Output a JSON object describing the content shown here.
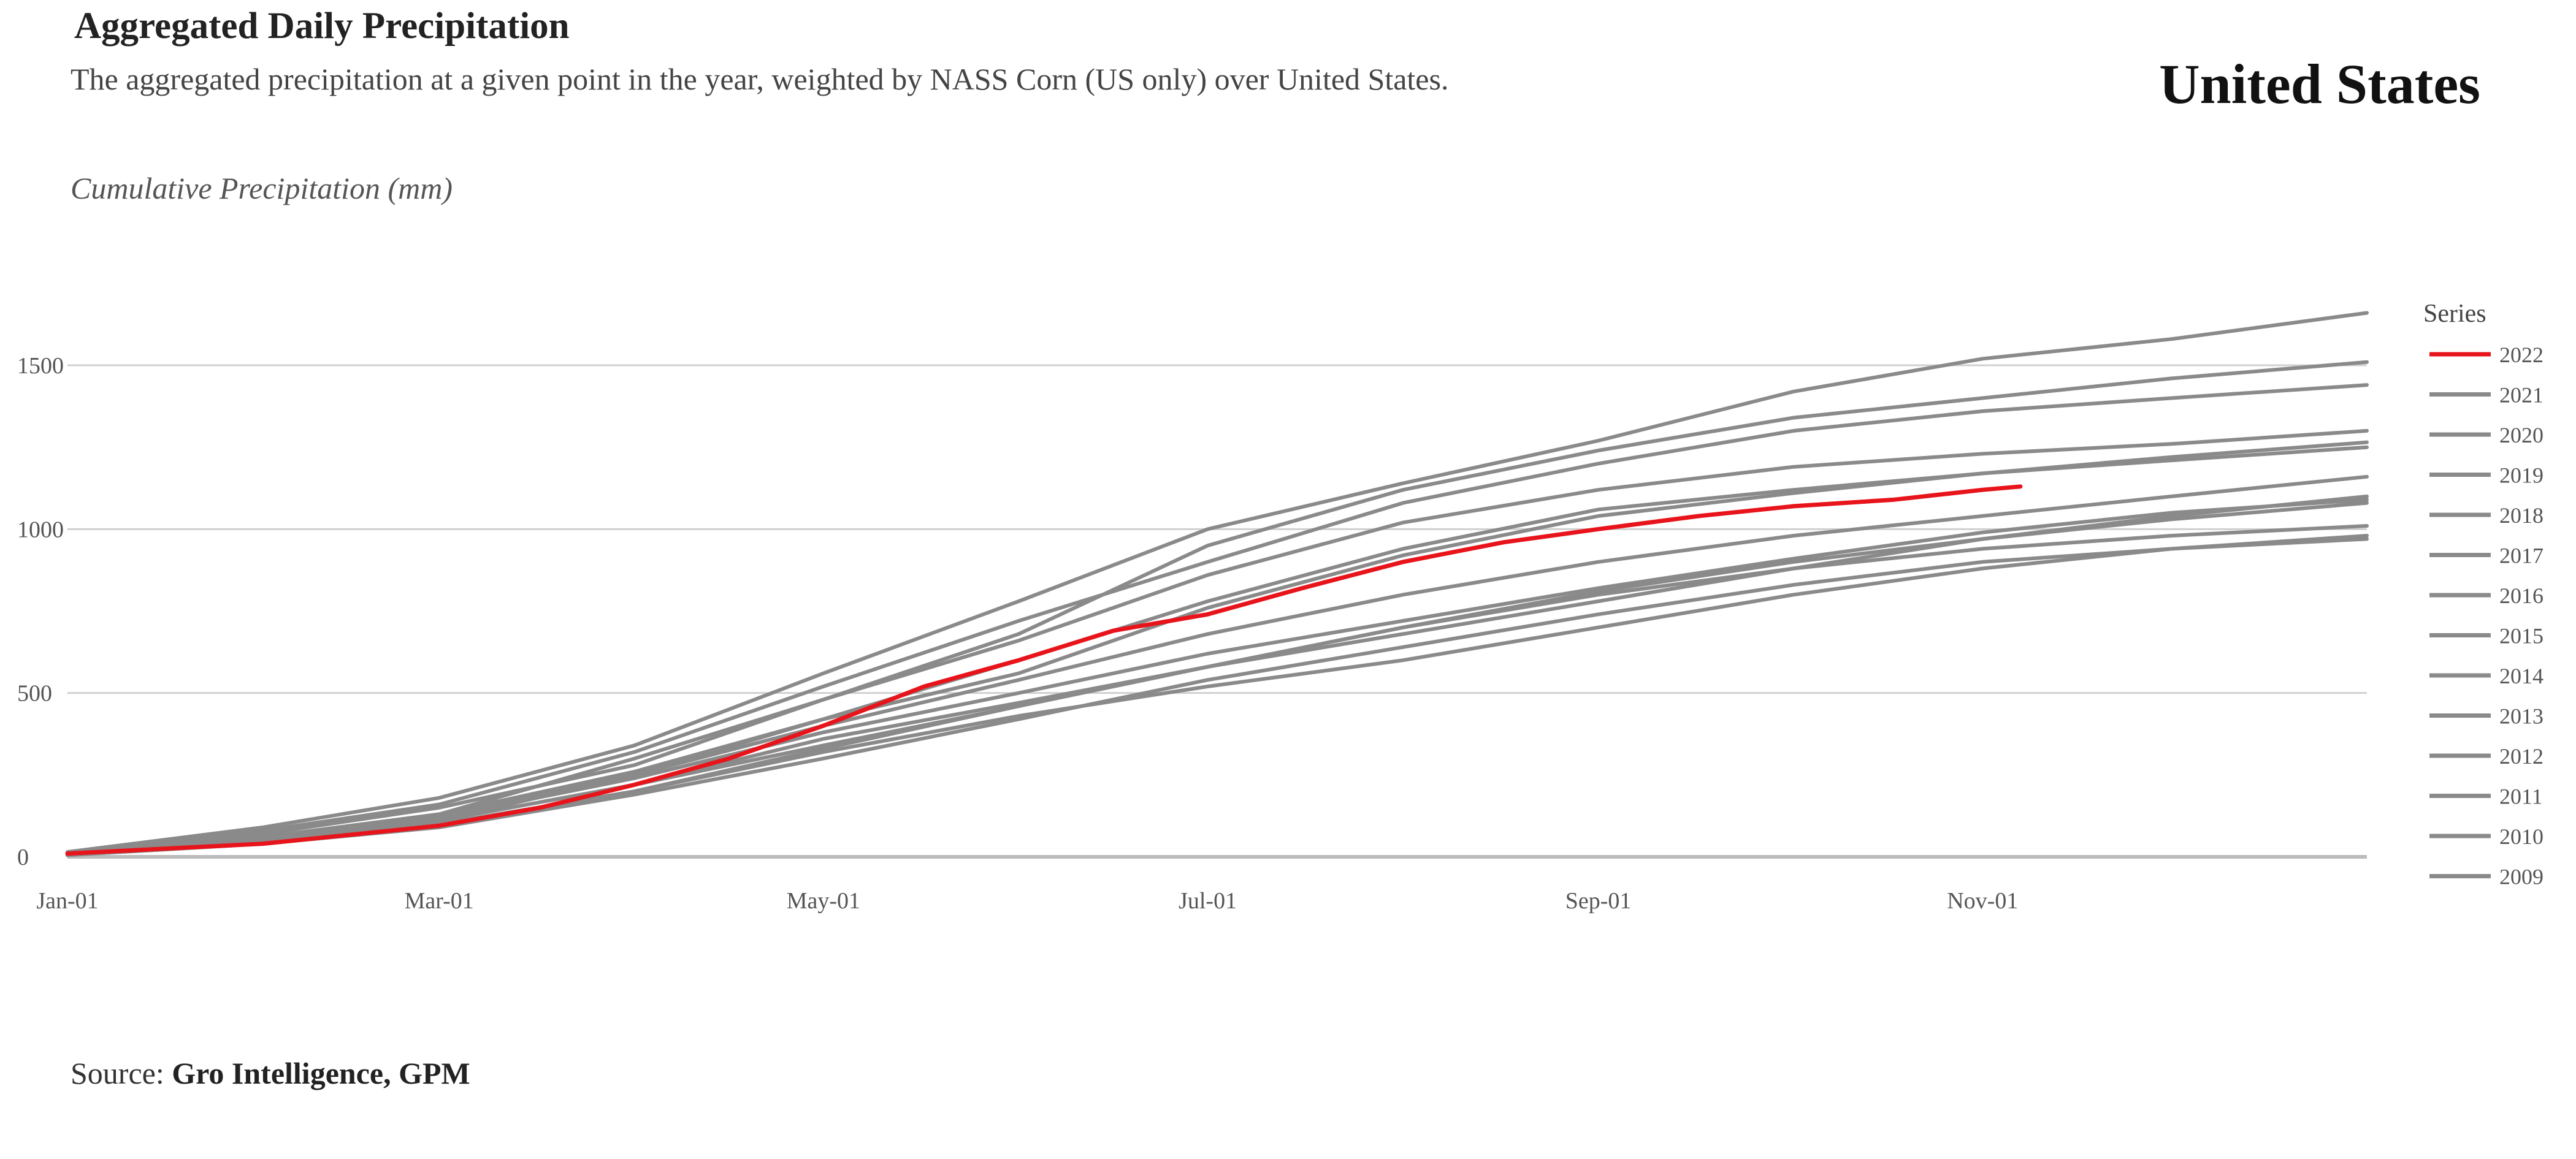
{
  "header": {
    "title": "Aggregated Daily Precipitation",
    "subtitle": "The aggregated precipitation at a given point in the year, weighted by NASS Corn (US only) over United States.",
    "region": "United States"
  },
  "footer": {
    "source_label": "Source:",
    "source_value": "Gro Intelligence, GPM"
  },
  "chart_data": {
    "type": "line",
    "title": "Aggregated Daily Precipitation",
    "ylabel": "Cumulative Precipitation  (mm)",
    "xlabel": "",
    "ylim": [
      0,
      1600
    ],
    "yticks": [
      0,
      500,
      1000,
      1500
    ],
    "xlim_days": [
      0,
      365
    ],
    "xticks": [
      {
        "label": "Jan-01",
        "day": 0
      },
      {
        "label": "Mar-01",
        "day": 59
      },
      {
        "label": "May-01",
        "day": 120
      },
      {
        "label": "Jul-01",
        "day": 181
      },
      {
        "label": "Sep-01",
        "day": 243
      },
      {
        "label": "Nov-01",
        "day": 304
      }
    ],
    "grid": true,
    "legend": {
      "title": "Series",
      "position": "right"
    },
    "colors": {
      "highlight": "#e8141b",
      "other": "#8a8a8a",
      "grid": "#d0d0d0",
      "axis": "#bbbbbb"
    },
    "series": [
      {
        "name": "2022",
        "highlight": true,
        "points": [
          [
            0,
            10
          ],
          [
            31,
            40
          ],
          [
            59,
            95
          ],
          [
            75,
            150
          ],
          [
            90,
            220
          ],
          [
            105,
            300
          ],
          [
            120,
            400
          ],
          [
            136,
            520
          ],
          [
            151,
            600
          ],
          [
            166,
            690
          ],
          [
            181,
            740
          ],
          [
            196,
            820
          ],
          [
            212,
            900
          ],
          [
            228,
            960
          ],
          [
            243,
            1000
          ],
          [
            259,
            1040
          ],
          [
            274,
            1070
          ],
          [
            290,
            1090
          ],
          [
            304,
            1120
          ],
          [
            310,
            1130
          ]
        ]
      },
      {
        "name": "2021",
        "points": [
          [
            0,
            5
          ],
          [
            31,
            50
          ],
          [
            59,
            110
          ],
          [
            90,
            250
          ],
          [
            120,
            420
          ],
          [
            151,
            560
          ],
          [
            181,
            760
          ],
          [
            212,
            920
          ],
          [
            243,
            1040
          ],
          [
            274,
            1110
          ],
          [
            304,
            1170
          ],
          [
            334,
            1220
          ],
          [
            365,
            1265
          ]
        ]
      },
      {
        "name": "2020",
        "points": [
          [
            0,
            10
          ],
          [
            31,
            70
          ],
          [
            59,
            150
          ],
          [
            90,
            280
          ],
          [
            120,
            480
          ],
          [
            151,
            680
          ],
          [
            181,
            950
          ],
          [
            212,
            1120
          ],
          [
            243,
            1240
          ],
          [
            274,
            1340
          ],
          [
            304,
            1400
          ],
          [
            334,
            1460
          ],
          [
            365,
            1510
          ]
        ]
      },
      {
        "name": "2019",
        "points": [
          [
            0,
            15
          ],
          [
            31,
            90
          ],
          [
            59,
            180
          ],
          [
            90,
            340
          ],
          [
            120,
            560
          ],
          [
            151,
            780
          ],
          [
            181,
            1000
          ],
          [
            212,
            1140
          ],
          [
            243,
            1270
          ],
          [
            274,
            1420
          ],
          [
            304,
            1520
          ],
          [
            334,
            1580
          ],
          [
            365,
            1660
          ]
        ]
      },
      {
        "name": "2018",
        "points": [
          [
            0,
            5
          ],
          [
            31,
            60
          ],
          [
            59,
            130
          ],
          [
            90,
            300
          ],
          [
            120,
            480
          ],
          [
            151,
            660
          ],
          [
            181,
            860
          ],
          [
            212,
            1020
          ],
          [
            243,
            1120
          ],
          [
            274,
            1190
          ],
          [
            304,
            1230
          ],
          [
            334,
            1260
          ],
          [
            365,
            1300
          ]
        ]
      },
      {
        "name": "2017",
        "points": [
          [
            0,
            10
          ],
          [
            31,
            80
          ],
          [
            59,
            160
          ],
          [
            90,
            320
          ],
          [
            120,
            520
          ],
          [
            151,
            720
          ],
          [
            181,
            900
          ],
          [
            212,
            1080
          ],
          [
            243,
            1200
          ],
          [
            274,
            1300
          ],
          [
            304,
            1360
          ],
          [
            334,
            1400
          ],
          [
            365,
            1440
          ]
        ]
      },
      {
        "name": "2016",
        "points": [
          [
            0,
            5
          ],
          [
            31,
            50
          ],
          [
            59,
            110
          ],
          [
            90,
            220
          ],
          [
            120,
            360
          ],
          [
            151,
            470
          ],
          [
            181,
            580
          ],
          [
            212,
            680
          ],
          [
            243,
            780
          ],
          [
            274,
            880
          ],
          [
            304,
            970
          ],
          [
            334,
            1040
          ],
          [
            365,
            1100
          ]
        ]
      },
      {
        "name": "2015",
        "points": [
          [
            0,
            8
          ],
          [
            31,
            60
          ],
          [
            59,
            130
          ],
          [
            90,
            260
          ],
          [
            120,
            420
          ],
          [
            151,
            600
          ],
          [
            181,
            780
          ],
          [
            212,
            940
          ],
          [
            243,
            1060
          ],
          [
            274,
            1120
          ],
          [
            304,
            1170
          ],
          [
            334,
            1210
          ],
          [
            365,
            1250
          ]
        ]
      },
      {
        "name": "2014",
        "points": [
          [
            0,
            5
          ],
          [
            31,
            40
          ],
          [
            59,
            90
          ],
          [
            90,
            190
          ],
          [
            120,
            300
          ],
          [
            151,
            420
          ],
          [
            181,
            540
          ],
          [
            212,
            640
          ],
          [
            243,
            740
          ],
          [
            274,
            830
          ],
          [
            304,
            900
          ],
          [
            334,
            940
          ],
          [
            365,
            970
          ]
        ]
      },
      {
        "name": "2013",
        "points": [
          [
            0,
            5
          ],
          [
            31,
            55
          ],
          [
            59,
            120
          ],
          [
            90,
            240
          ],
          [
            120,
            380
          ],
          [
            151,
            500
          ],
          [
            181,
            620
          ],
          [
            212,
            720
          ],
          [
            243,
            820
          ],
          [
            274,
            910
          ],
          [
            304,
            990
          ],
          [
            334,
            1050
          ],
          [
            365,
            1090
          ]
        ]
      },
      {
        "name": "2012",
        "points": [
          [
            0,
            5
          ],
          [
            31,
            45
          ],
          [
            59,
            100
          ],
          [
            90,
            200
          ],
          [
            120,
            320
          ],
          [
            151,
            430
          ],
          [
            181,
            520
          ],
          [
            212,
            600
          ],
          [
            243,
            700
          ],
          [
            274,
            800
          ],
          [
            304,
            880
          ],
          [
            334,
            940
          ],
          [
            365,
            980
          ]
        ]
      },
      {
        "name": "2011",
        "points": [
          [
            0,
            5
          ],
          [
            31,
            60
          ],
          [
            59,
            130
          ],
          [
            90,
            250
          ],
          [
            120,
            400
          ],
          [
            151,
            540
          ],
          [
            181,
            680
          ],
          [
            212,
            800
          ],
          [
            243,
            900
          ],
          [
            274,
            980
          ],
          [
            304,
            1040
          ],
          [
            334,
            1100
          ],
          [
            365,
            1160
          ]
        ]
      },
      {
        "name": "2010",
        "points": [
          [
            0,
            5
          ],
          [
            31,
            50
          ],
          [
            59,
            110
          ],
          [
            90,
            220
          ],
          [
            120,
            340
          ],
          [
            151,
            460
          ],
          [
            181,
            580
          ],
          [
            212,
            700
          ],
          [
            243,
            810
          ],
          [
            274,
            900
          ],
          [
            304,
            970
          ],
          [
            334,
            1030
          ],
          [
            365,
            1080
          ]
        ]
      },
      {
        "name": "2009",
        "points": [
          [
            0,
            5
          ],
          [
            31,
            40
          ],
          [
            59,
            95
          ],
          [
            90,
            200
          ],
          [
            120,
            330
          ],
          [
            151,
            460
          ],
          [
            181,
            580
          ],
          [
            212,
            700
          ],
          [
            243,
            800
          ],
          [
            274,
            880
          ],
          [
            304,
            940
          ],
          [
            334,
            980
          ],
          [
            365,
            1010
          ]
        ]
      }
    ]
  }
}
